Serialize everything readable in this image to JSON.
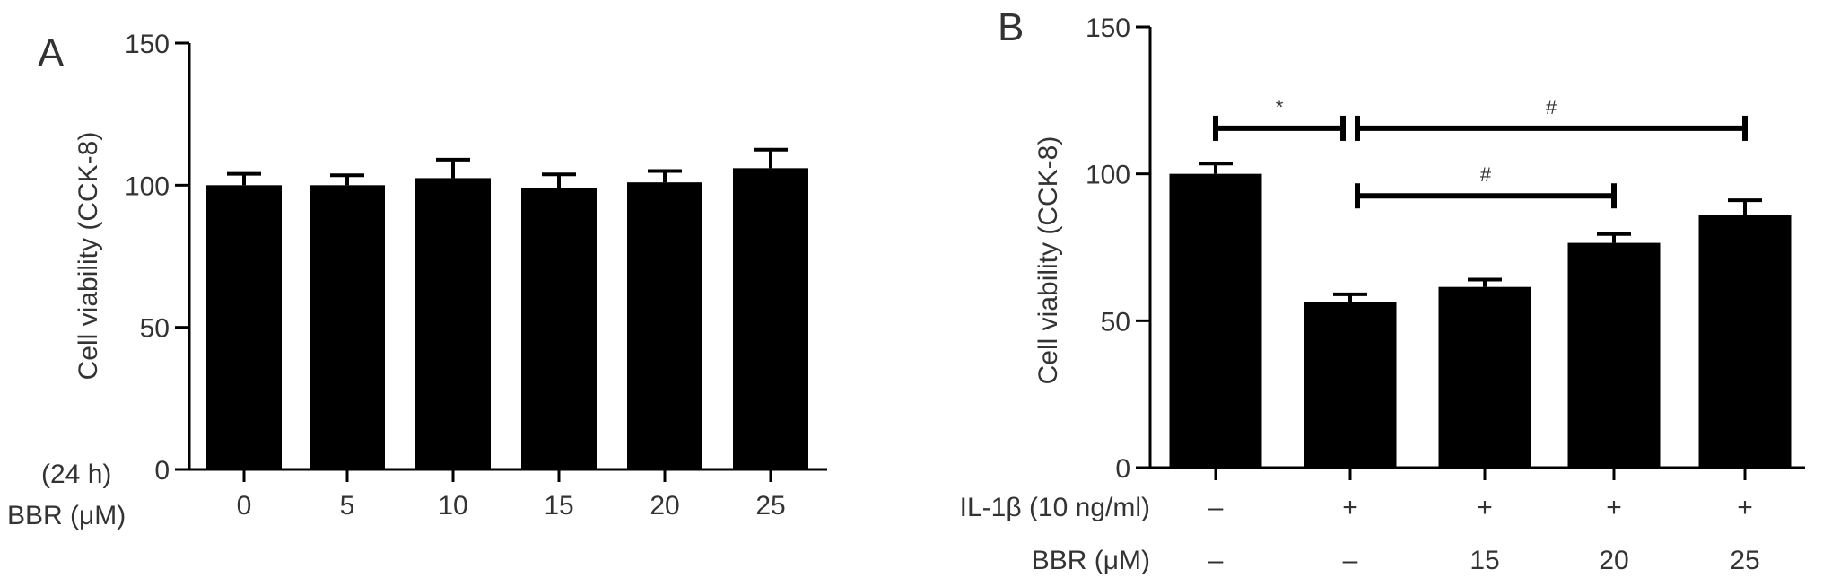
{
  "chart_data": [
    {
      "type": "bar",
      "panel_label": "A",
      "ylabel": "Cell viability (CCK-8)",
      "ylim": [
        0,
        150
      ],
      "yticks": [
        0,
        50,
        100,
        150
      ],
      "categories": [
        "0",
        "5",
        "10",
        "15",
        "20",
        "25"
      ],
      "values": [
        100,
        100,
        102.5,
        99,
        101,
        106
      ],
      "errors": [
        4,
        3.5,
        6.5,
        4.8,
        4,
        6.5
      ],
      "row_labels": [
        "(24 h)",
        "BBR (μM)"
      ],
      "grid": false,
      "legend": "none"
    },
    {
      "type": "bar",
      "panel_label": "B",
      "ylabel": "Cell viability (CCK-8)",
      "ylim": [
        0,
        150
      ],
      "yticks": [
        0,
        50,
        100,
        150
      ],
      "categories": [
        "",
        "",
        "",
        "",
        ""
      ],
      "values": [
        100,
        56.5,
        61.5,
        76.5,
        86
      ],
      "errors": [
        3.5,
        2.5,
        2.5,
        3,
        5
      ],
      "condition_rows": [
        {
          "label": "IL-1β (10 ng/ml)",
          "values": [
            "–",
            "+",
            "+",
            "+",
            "+"
          ]
        },
        {
          "label": "BBR (μM)",
          "values": [
            "–",
            "–",
            "15",
            "20",
            "25"
          ]
        }
      ],
      "significance": [
        {
          "from": 0,
          "to": 1,
          "y": 115.5,
          "label": "*"
        },
        {
          "from": 1,
          "to": 4,
          "y": 115.5,
          "label": "#"
        },
        {
          "from": 1,
          "to": 3,
          "y": 92.5,
          "label": "#"
        }
      ],
      "grid": false,
      "legend": "none"
    }
  ]
}
